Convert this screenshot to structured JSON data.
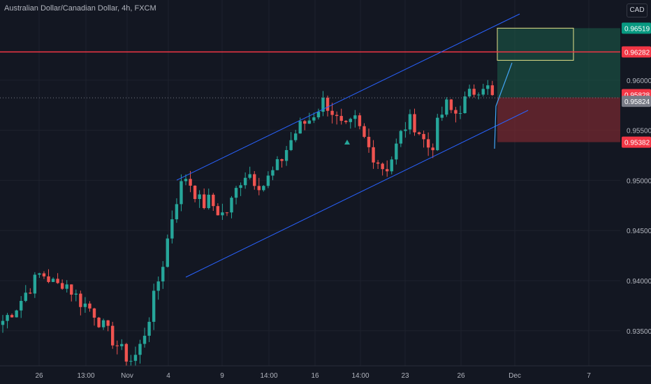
{
  "header": {
    "symbol_title": "Australian Dollar/Canadian Dollar, 4h, FXCM",
    "currency_button": "CAD"
  },
  "colors": {
    "background": "#131722",
    "grid": "#1e222d",
    "bull": "#26a69a",
    "bear": "#ef5350",
    "channel": "#2962ff",
    "resistance": "#f23645",
    "target_zone": "#1b5e4a",
    "stop_zone": "#7a2a30",
    "axis_text": "#b2b5be"
  },
  "price_axis": {
    "ticks": [
      "0.96000",
      "0.95500",
      "0.95000",
      "0.94500",
      "0.94000",
      "0.93500"
    ],
    "labels": [
      {
        "text": "0.96519",
        "value": 0.96519,
        "color": "#089981"
      },
      {
        "text": "0.96282",
        "value": 0.96282,
        "color": "#f23645"
      },
      {
        "text": "0.95828",
        "value": 0.95828,
        "color": "#f23645"
      },
      {
        "text": "0.95824",
        "value": 0.95824,
        "color": "#787b86"
      },
      {
        "text": "0.95382",
        "value": 0.95382,
        "color": "#f23645"
      }
    ]
  },
  "time_axis": {
    "ticks": [
      "26",
      "13:00",
      "Nov",
      "4",
      "9",
      "14:00",
      "16",
      "14:00",
      "23",
      "26",
      "Dec",
      "7"
    ]
  },
  "chart_data": {
    "type": "candlestick",
    "symbol": "AUDCAD",
    "timeframe": "4h",
    "ylim": [
      0.9315,
      0.968
    ],
    "resistance_level": 0.96282,
    "current_price": 0.95824,
    "position": {
      "entry": 0.95828,
      "target": 0.96519,
      "stop": 0.95382
    },
    "close_path": [
      0.936,
      0.9368,
      0.9376,
      0.9388,
      0.9398,
      0.9408,
      0.9402,
      0.9394,
      0.94,
      0.939,
      0.938,
      0.9375,
      0.9368,
      0.9355,
      0.9345,
      0.9335,
      0.9325,
      0.932,
      0.9335,
      0.936,
      0.939,
      0.942,
      0.946,
      0.949,
      0.9505,
      0.949,
      0.9475,
      0.948,
      0.947,
      0.9465,
      0.948,
      0.95,
      0.951,
      0.95,
      0.9495,
      0.9505,
      0.9515,
      0.953,
      0.9545,
      0.9555,
      0.956,
      0.957,
      0.958,
      0.957,
      0.9555,
      0.955,
      0.956,
      0.9545,
      0.953,
      0.952,
      0.951,
      0.9525,
      0.9545,
      0.956,
      0.9555,
      0.954,
      0.953,
      0.956,
      0.9575,
      0.9565,
      0.9575,
      0.9585,
      0.9592,
      0.9598,
      0.9582
    ],
    "annotation": {
      "type": "arrow-up",
      "color": "#26a69a"
    }
  }
}
